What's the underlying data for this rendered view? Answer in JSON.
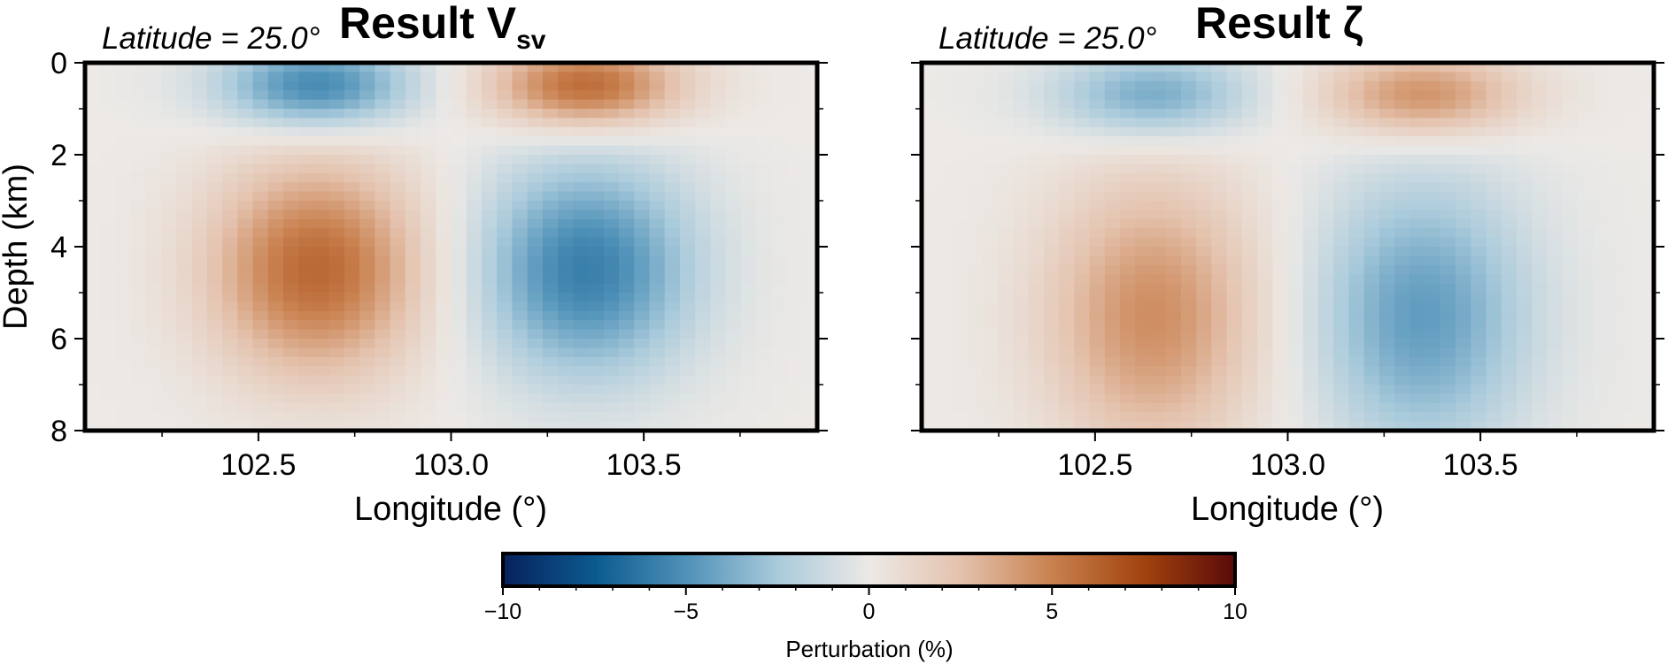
{
  "figure": {
    "panels": [
      {
        "latitude_label": "Latitude = 25.0°",
        "title_main": "Result V",
        "title_sub": "sv",
        "xlabel": "Longitude (°)",
        "ylabel": "Depth (km)"
      },
      {
        "latitude_label": "Latitude = 25.0°",
        "title_main": "Result ζ",
        "title_sub": "",
        "xlabel": "Longitude (°)",
        "ylabel": ""
      }
    ],
    "colorbar": {
      "label": "Perturbation (%)",
      "ticks": [
        "−10",
        "−5",
        "0",
        "5",
        "10"
      ],
      "range": [
        -10,
        10
      ],
      "colormap": [
        "#08215c",
        "#0b5a8f",
        "#4f91b8",
        "#a9cadb",
        "#ece9e6",
        "#e4c2ad",
        "#c9814f",
        "#a1430e",
        "#5a0a0a"
      ]
    }
  },
  "chart_data": [
    {
      "type": "heatmap",
      "title": "Result Vsv",
      "annotation": "Latitude = 25.0°",
      "xlabel": "Longitude (°)",
      "ylabel": "Depth (km)",
      "xlim": [
        102.05,
        103.95
      ],
      "ylim": [
        8,
        0
      ],
      "y_inverted": true,
      "xticks": [
        102.5,
        103.0,
        103.5
      ],
      "xtick_labels": [
        "102.5",
        "103.0",
        "103.5"
      ],
      "yticks": [
        0,
        2,
        4,
        6,
        8
      ],
      "ytick_labels": [
        "0",
        "2",
        "4",
        "6",
        "8"
      ],
      "colorbar_range": [
        -10,
        10
      ],
      "anomalies": [
        {
          "lon": 102.65,
          "depth": 0.5,
          "value": -5.5,
          "lon_halfwidth": 0.27,
          "depth_halfwidth": 1.0
        },
        {
          "lon": 103.35,
          "depth": 0.5,
          "value": 6.0,
          "lon_halfwidth": 0.27,
          "depth_halfwidth": 1.0
        },
        {
          "lon": 102.65,
          "depth": 4.5,
          "value": 6.0,
          "lon_halfwidth": 0.3,
          "depth_halfwidth": 2.5
        },
        {
          "lon": 103.35,
          "depth": 4.5,
          "value": -5.8,
          "lon_halfwidth": 0.3,
          "depth_halfwidth": 2.5
        }
      ]
    },
    {
      "type": "heatmap",
      "title": "Result ζ",
      "annotation": "Latitude = 25.0°",
      "xlabel": "Longitude (°)",
      "ylabel": "",
      "xlim": [
        102.05,
        103.95
      ],
      "ylim": [
        8,
        0
      ],
      "y_inverted": true,
      "xticks": [
        102.5,
        103.0,
        103.5
      ],
      "xtick_labels": [
        "102.5",
        "103.0",
        "103.5"
      ],
      "yticks": [
        0,
        2,
        4,
        6,
        8
      ],
      "ytick_labels": [
        "",
        "",
        "",
        "",
        ""
      ],
      "colorbar_range": [
        -10,
        10
      ],
      "anomalies": [
        {
          "lon": 102.65,
          "depth": 0.7,
          "value": -4.0,
          "lon_halfwidth": 0.28,
          "depth_halfwidth": 1.0
        },
        {
          "lon": 103.35,
          "depth": 0.7,
          "value": 4.5,
          "lon_halfwidth": 0.28,
          "depth_halfwidth": 1.0
        },
        {
          "lon": 102.65,
          "depth": 5.5,
          "value": 4.5,
          "lon_halfwidth": 0.3,
          "depth_halfwidth": 3.2
        },
        {
          "lon": 103.35,
          "depth": 5.5,
          "value": -4.5,
          "lon_halfwidth": 0.3,
          "depth_halfwidth": 3.2
        }
      ]
    }
  ]
}
